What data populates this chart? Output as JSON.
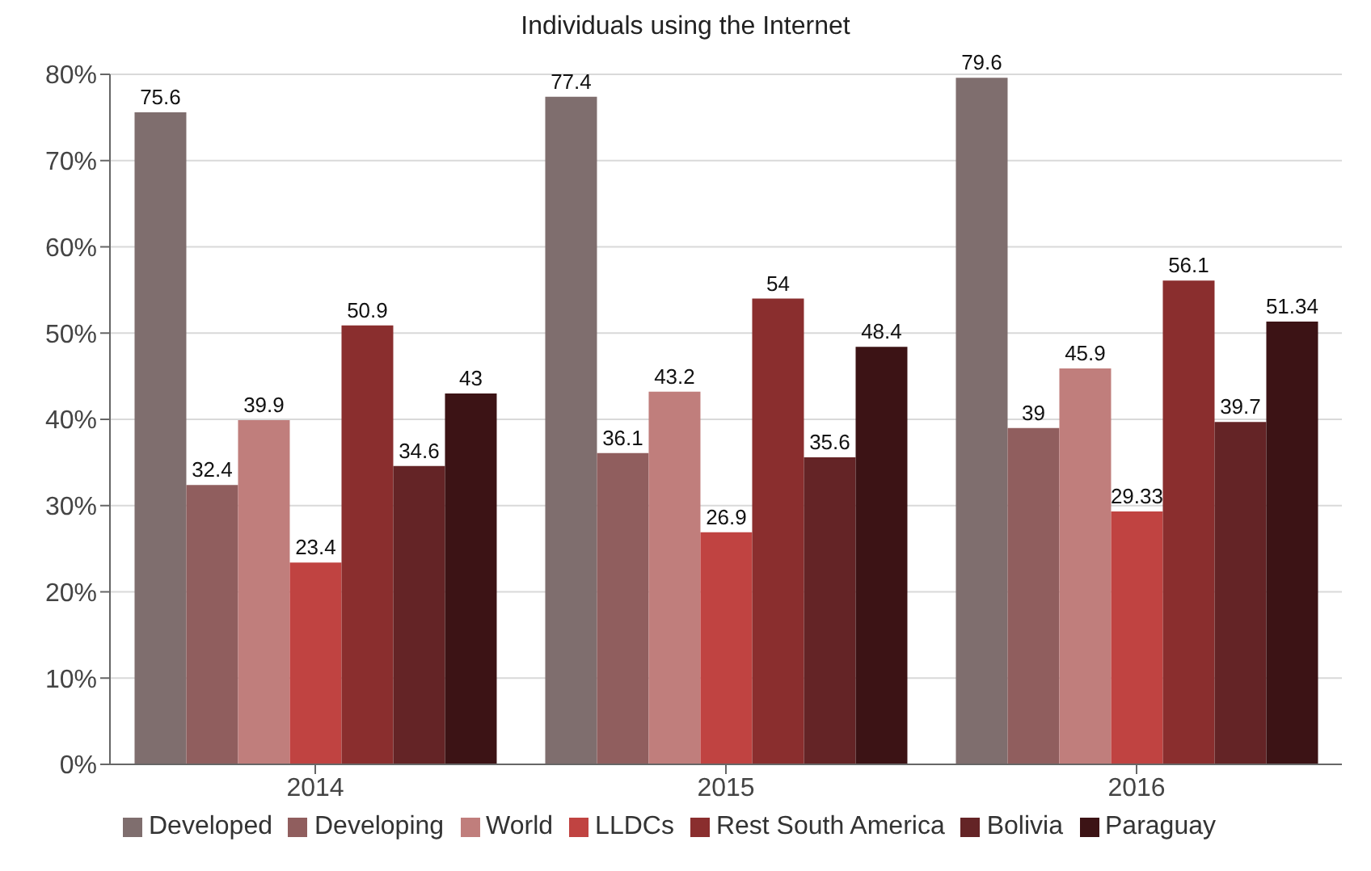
{
  "chart_data": {
    "type": "bar",
    "title": "Individuals using the Internet",
    "categories": [
      "2014",
      "2015",
      "2016"
    ],
    "series": [
      {
        "name": "Developed",
        "color": "#7f6e6e",
        "values": [
          75.6,
          77.4,
          79.6
        ]
      },
      {
        "name": "Developing",
        "color": "#905e5e",
        "values": [
          32.4,
          36.1,
          39
        ]
      },
      {
        "name": "World",
        "color": "#c07e7c",
        "values": [
          39.9,
          43.2,
          45.9
        ]
      },
      {
        "name": "LLDCs",
        "color": "#c04341",
        "values": [
          23.4,
          26.9,
          29.33
        ]
      },
      {
        "name": "Rest South America",
        "color": "#8a2e2e",
        "values": [
          50.9,
          54,
          56.1
        ]
      },
      {
        "name": "Bolivia",
        "color": "#642426",
        "values": [
          34.6,
          35.6,
          39.7
        ]
      },
      {
        "name": "Paraguay",
        "color": "#3c1315",
        "values": [
          43,
          48.4,
          51.34
        ]
      }
    ],
    "ylim": [
      0,
      80
    ],
    "yticks": [
      {
        "value": 0,
        "label": "0%"
      },
      {
        "value": 10,
        "label": "10%"
      },
      {
        "value": 20,
        "label": "20%"
      },
      {
        "value": 30,
        "label": "30%"
      },
      {
        "value": 40,
        "label": "40%"
      },
      {
        "value": 50,
        "label": "50%"
      },
      {
        "value": 60,
        "label": "60%"
      },
      {
        "value": 70,
        "label": "70%"
      },
      {
        "value": 80,
        "label": "80%"
      }
    ],
    "grid": "y",
    "legend": "bottom",
    "data_labels": true
  }
}
